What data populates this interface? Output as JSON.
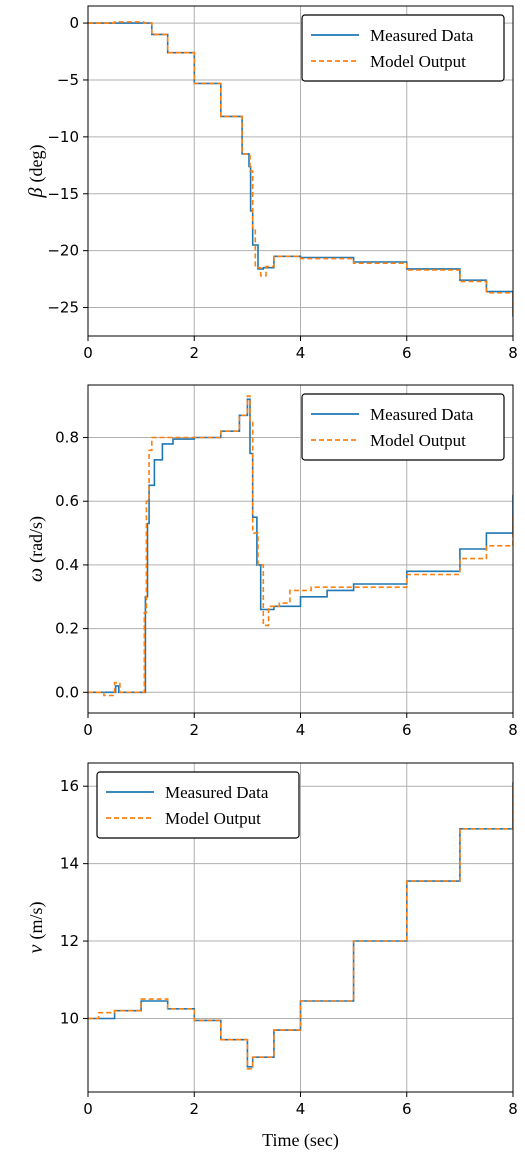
{
  "colors": {
    "measured": "#1f77b4",
    "model": "#ff7f0e",
    "grid": "#b0b0b0"
  },
  "chart_data": [
    {
      "type": "line",
      "ylabel": {
        "symbol": "β",
        "unit": "(deg)"
      },
      "xlabel": "",
      "xlim": [
        0,
        8
      ],
      "ylim": [
        -27.5,
        1.5
      ],
      "xticks": [
        0,
        2,
        4,
        6,
        8
      ],
      "yticks": [
        0,
        -5,
        -10,
        -15,
        -20,
        -25
      ],
      "grid": true,
      "legend": {
        "position": "top-right",
        "entries": [
          "Measured Data",
          "Model Output"
        ]
      },
      "series": [
        {
          "name": "Measured Data",
          "points": [
            [
              0,
              0
            ],
            [
              0.5,
              0
            ],
            [
              1.05,
              0
            ],
            [
              1.2,
              -1
            ],
            [
              1.5,
              -2.6
            ],
            [
              2.0,
              -5.3
            ],
            [
              2.5,
              -8.2
            ],
            [
              2.9,
              -11.5
            ],
            [
              3.03,
              -12.6
            ],
            [
              3.06,
              -16.5
            ],
            [
              3.1,
              -19.5
            ],
            [
              3.2,
              -21.6
            ],
            [
              3.3,
              -21.5
            ],
            [
              3.5,
              -20.5
            ],
            [
              4.0,
              -20.6
            ],
            [
              5.0,
              -21.0
            ],
            [
              6.0,
              -21.6
            ],
            [
              7.0,
              -22.6
            ],
            [
              7.5,
              -23.6
            ],
            [
              8.0,
              -25.8
            ]
          ]
        },
        {
          "name": "Model Output",
          "points": [
            [
              0,
              0
            ],
            [
              0.5,
              0.1
            ],
            [
              1.05,
              0
            ],
            [
              1.2,
              -1
            ],
            [
              1.5,
              -2.6
            ],
            [
              2.0,
              -5.3
            ],
            [
              2.5,
              -8.2
            ],
            [
              2.9,
              -11.5
            ],
            [
              3.05,
              -13.0
            ],
            [
              3.1,
              -18
            ],
            [
              3.15,
              -21.5
            ],
            [
              3.25,
              -22.2
            ],
            [
              3.35,
              -21.4
            ],
            [
              3.5,
              -20.5
            ],
            [
              4.0,
              -20.7
            ],
            [
              5.0,
              -21.1
            ],
            [
              6.0,
              -21.7
            ],
            [
              7.0,
              -22.7
            ],
            [
              7.5,
              -23.7
            ],
            [
              8.0,
              -25.8
            ]
          ]
        }
      ]
    },
    {
      "type": "line",
      "ylabel": {
        "symbol": "ω",
        "unit": "(rad/s)"
      },
      "xlabel": "",
      "xlim": [
        0,
        8
      ],
      "ylim": [
        -0.065,
        0.965
      ],
      "xticks": [
        0,
        2,
        4,
        6,
        8
      ],
      "yticks": [
        0.0,
        0.2,
        0.4,
        0.6,
        0.8
      ],
      "grid": true,
      "legend": {
        "position": "top-right",
        "entries": [
          "Measured Data",
          "Model Output"
        ]
      },
      "series": [
        {
          "name": "Measured Data",
          "points": [
            [
              0,
              0
            ],
            [
              0.45,
              0
            ],
            [
              0.52,
              0.02
            ],
            [
              0.58,
              0
            ],
            [
              1.05,
              0
            ],
            [
              1.08,
              0.3
            ],
            [
              1.12,
              0.53
            ],
            [
              1.15,
              0.65
            ],
            [
              1.25,
              0.73
            ],
            [
              1.4,
              0.78
            ],
            [
              1.6,
              0.795
            ],
            [
              2.0,
              0.8
            ],
            [
              2.5,
              0.82
            ],
            [
              2.85,
              0.87
            ],
            [
              3.0,
              0.92
            ],
            [
              3.05,
              0.75
            ],
            [
              3.1,
              0.55
            ],
            [
              3.18,
              0.4
            ],
            [
              3.25,
              0.26
            ],
            [
              3.5,
              0.27
            ],
            [
              4.0,
              0.3
            ],
            [
              4.5,
              0.32
            ],
            [
              5.0,
              0.34
            ],
            [
              6.0,
              0.38
            ],
            [
              7.0,
              0.45
            ],
            [
              7.5,
              0.5
            ],
            [
              8.0,
              0.62
            ]
          ]
        },
        {
          "name": "Model Output",
          "points": [
            [
              0,
              0
            ],
            [
              0.3,
              -0.01
            ],
            [
              0.5,
              0.03
            ],
            [
              0.6,
              0
            ],
            [
              1.03,
              0
            ],
            [
              1.06,
              0.25
            ],
            [
              1.1,
              0.6
            ],
            [
              1.15,
              0.76
            ],
            [
              1.2,
              0.8
            ],
            [
              1.4,
              0.8
            ],
            [
              2.0,
              0.8
            ],
            [
              2.5,
              0.82
            ],
            [
              2.85,
              0.87
            ],
            [
              3.0,
              0.93
            ],
            [
              3.05,
              0.85
            ],
            [
              3.1,
              0.5
            ],
            [
              3.2,
              0.4
            ],
            [
              3.3,
              0.21
            ],
            [
              3.4,
              0.27
            ],
            [
              3.6,
              0.28
            ],
            [
              3.8,
              0.32
            ],
            [
              4.2,
              0.33
            ],
            [
              5.0,
              0.33
            ],
            [
              6.0,
              0.37
            ],
            [
              7.0,
              0.42
            ],
            [
              7.5,
              0.46
            ],
            [
              8.0,
              0.56
            ]
          ]
        }
      ]
    },
    {
      "type": "line",
      "ylabel": {
        "symbol": "v",
        "unit": "(m/s)"
      },
      "xlabel": "Time (sec)",
      "xlim": [
        0,
        8
      ],
      "ylim": [
        8.1,
        16.6
      ],
      "xticks": [
        0,
        2,
        4,
        6,
        8
      ],
      "yticks": [
        10,
        12,
        14,
        16
      ],
      "grid": true,
      "legend": {
        "position": "top-left",
        "entries": [
          "Measured Data",
          "Model Output"
        ]
      },
      "series": [
        {
          "name": "Measured Data",
          "points": [
            [
              0,
              10.0
            ],
            [
              0.5,
              10.2
            ],
            [
              1.0,
              10.45
            ],
            [
              1.5,
              10.25
            ],
            [
              2.0,
              9.95
            ],
            [
              2.5,
              9.45
            ],
            [
              3.0,
              8.75
            ],
            [
              3.1,
              9.0
            ],
            [
              3.5,
              9.7
            ],
            [
              4.0,
              10.45
            ],
            [
              5.0,
              12.0
            ],
            [
              6.0,
              13.55
            ],
            [
              7.0,
              14.9
            ],
            [
              8.0,
              16.1
            ]
          ]
        },
        {
          "name": "Model Output",
          "points": [
            [
              0,
              10.0
            ],
            [
              0.2,
              10.15
            ],
            [
              0.5,
              10.2
            ],
            [
              1.0,
              10.5
            ],
            [
              1.5,
              10.25
            ],
            [
              2.0,
              9.95
            ],
            [
              2.5,
              9.45
            ],
            [
              3.0,
              8.7
            ],
            [
              3.1,
              9.0
            ],
            [
              3.5,
              9.7
            ],
            [
              4.0,
              10.45
            ],
            [
              5.0,
              12.0
            ],
            [
              6.0,
              13.55
            ],
            [
              7.0,
              14.9
            ],
            [
              8.0,
              16.1
            ]
          ]
        }
      ]
    }
  ]
}
